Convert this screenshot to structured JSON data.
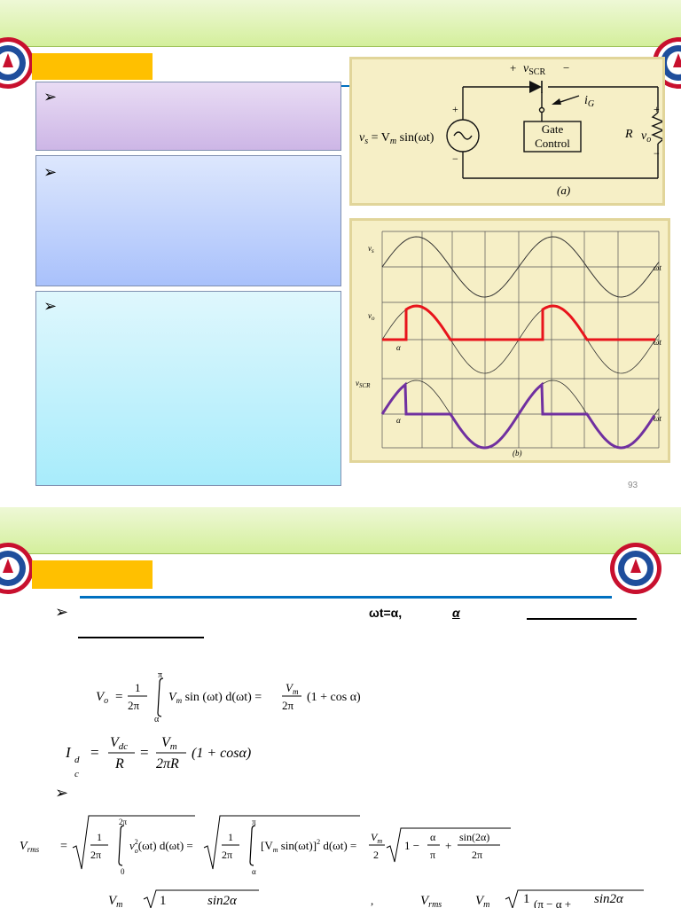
{
  "slide1": {
    "circuit": {
      "source_label": "v",
      "source_sub": "s",
      "source_eq": " = V",
      "source_eq_sub": "m",
      "source_eq_tail": " sin(ωt)",
      "scr_label": "v",
      "scr_sub": "SCR",
      "ig_label": "i",
      "ig_sub": "G",
      "gate_line1": "Gate",
      "gate_line2": "Control",
      "r_label": "R",
      "vo_label": "v",
      "vo_sub": "o",
      "plus": "+",
      "minus": "−",
      "caption": "(a)"
    },
    "waveforms": {
      "vs_label": "v",
      "vs_sub": "s",
      "vo_label": "v",
      "vo_sub": "o",
      "vscr_label": "v",
      "vscr_sub": "SCR",
      "wt": "ωt",
      "alpha": "α",
      "caption": "(b)",
      "colors": {
        "vo": "#e8141c",
        "vscr": "#7030a0"
      }
    },
    "page_number": "93"
  },
  "slide2": {
    "condition": "ωt=α,",
    "alpha": "α",
    "eq1": {
      "lhs": "V",
      "lhs_sub": "o",
      "eq": "=",
      "one": "1",
      "two_pi": "2π",
      "pi": "π",
      "alpha": "α",
      "integrand": "V",
      "integrand_sub": "m",
      "integrand_tail": " sin (ωt) d(ωt) =",
      "vm": "V",
      "vm_sub": "m",
      "tail": "(1 +  cos α)"
    },
    "eq2": {
      "lhs": "I",
      "lhs_sub1": "d",
      "lhs_sub2": "c",
      "eq": "=",
      "vdc": "V",
      "vdc_sub": "dc",
      "r": "R",
      "vm": "V",
      "vm_sub": "m",
      "two_pi_r": "2πR",
      "tail": "(1 + cosα)"
    },
    "eq3": {
      "lhs": "V",
      "lhs_sub": "rms",
      "eq": "=",
      "one": "1",
      "two_pi": "2π",
      "upper1": "2π",
      "lower1": "0",
      "integrand1": "v",
      "integrand1_sub": "o",
      "integrand1_sup": "2",
      "integrand1_tail": "(ωt) d(ωt) =",
      "upper2": "π",
      "lower2": "α",
      "integrand2": "[V",
      "integrand2_sub": "m",
      "integrand2_tail": " sin(ωt)]",
      "integrand2_sup": "2",
      "integrand2_end": " d(ωt) =",
      "vm": "V",
      "vm_sub": "m",
      "two": "2",
      "root_one": "1 −",
      "root_alpha": "α",
      "root_pi": "π",
      "root_plus": "+",
      "root_sin": "sin(2α)",
      "root_two_pi": "2π"
    },
    "eq4": {
      "vm": "V",
      "vm_sub": "m",
      "one": "1",
      "sin2a": "sin2α",
      "vrms": "V",
      "vrms_sub": "rms",
      "vm2": "V",
      "vm2_sub": "m",
      "one2": "1",
      "tail": "(π − α +",
      "sin2a2": "sin2α"
    }
  }
}
